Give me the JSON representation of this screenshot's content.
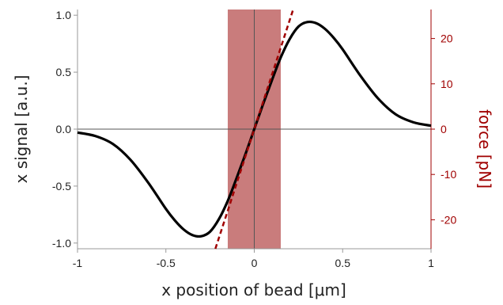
{
  "chart_data": {
    "type": "line",
    "xlabel": "x position of bead [μm]",
    "ylabel": "x signal [a.u.]",
    "y2label": "force [pN]",
    "xlim": [
      -1,
      1
    ],
    "ylim": [
      -1.05,
      1.05
    ],
    "y2lim": [
      -26.4,
      26.4
    ],
    "xticks": [
      "-1",
      "-0.5",
      "0",
      "0.5",
      "1"
    ],
    "yticks": [
      "-1.0",
      "-0.5",
      "0.0",
      "0.5",
      "1.0"
    ],
    "y2ticks": [
      "-20",
      "-10",
      "0",
      "10",
      "20"
    ],
    "shaded_region": {
      "x": [
        -0.15,
        0.15
      ],
      "color": "#c97c7c"
    },
    "series": [
      {
        "style": "solid",
        "color": "#000000",
        "x": [
          -1.0,
          -0.9,
          -0.8,
          -0.7,
          -0.6,
          -0.5,
          -0.45,
          -0.4,
          -0.35,
          -0.3,
          -0.25,
          -0.2,
          -0.15,
          -0.1,
          -0.05,
          0.0,
          0.05,
          0.1,
          0.15,
          0.2,
          0.25,
          0.3,
          0.35,
          0.4,
          0.45,
          0.5,
          0.6,
          0.7,
          0.8,
          0.9,
          1.0
        ],
        "y": [
          -0.03,
          -0.06,
          -0.13,
          -0.27,
          -0.47,
          -0.7,
          -0.8,
          -0.88,
          -0.93,
          -0.94,
          -0.9,
          -0.79,
          -0.63,
          -0.43,
          -0.22,
          0.0,
          0.22,
          0.43,
          0.63,
          0.79,
          0.9,
          0.94,
          0.93,
          0.88,
          0.8,
          0.7,
          0.47,
          0.27,
          0.13,
          0.06,
          0.03
        ]
      },
      {
        "style": "dashed",
        "color": "#a00000",
        "x": [
          -0.22,
          0.22
        ],
        "y": [
          -1.05,
          1.05
        ]
      }
    ],
    "reference_lines": {
      "vertical_x": 0,
      "horizontal_y": 0
    },
    "colors": {
      "axis": "#999999",
      "right_axis": "#a00000",
      "text": "#222222"
    }
  }
}
